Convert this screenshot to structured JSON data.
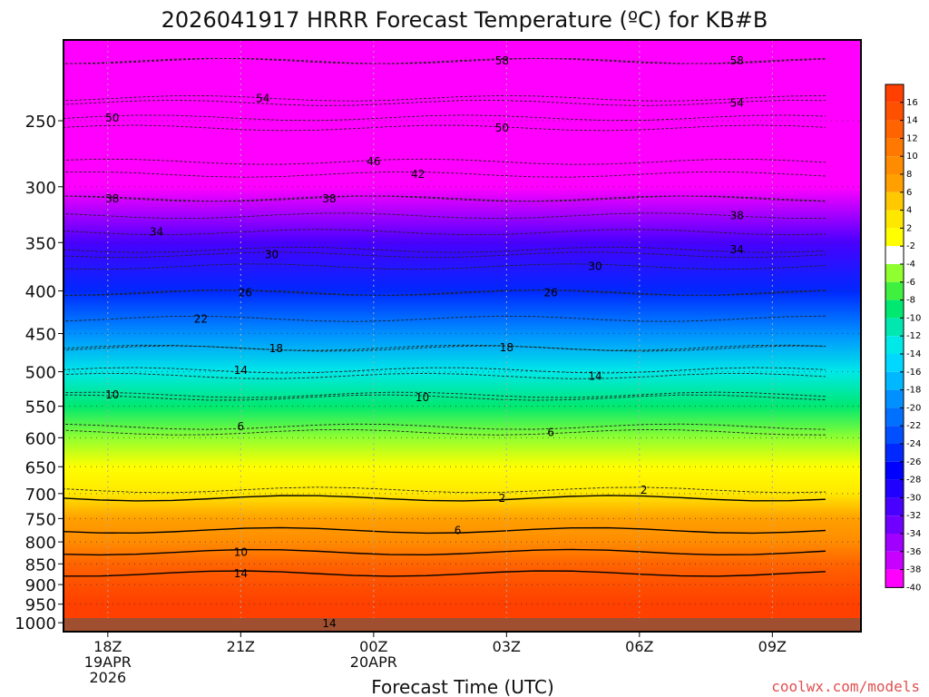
{
  "chart_data": {
    "type": "heatmap",
    "title": "2026041917 HRRR Forecast Temperature (ºC) for KB#B",
    "xlabel": "Forecast Time (UTC)",
    "ylabel": "",
    "watermark": "coolwx.com/models",
    "x_ticks": [
      {
        "hour": 0,
        "lines": [
          "18Z",
          "19APR",
          "2026"
        ]
      },
      {
        "hour": 3,
        "lines": [
          "21Z"
        ]
      },
      {
        "hour": 6,
        "lines": [
          "00Z",
          "20APR"
        ]
      },
      {
        "hour": 9,
        "lines": [
          "03Z"
        ]
      },
      {
        "hour": 12,
        "lines": [
          "06Z"
        ]
      },
      {
        "hour": 15,
        "lines": [
          "09Z"
        ]
      }
    ],
    "xlim": [
      -1,
      17
    ],
    "y_ticks": [
      250,
      300,
      350,
      400,
      450,
      500,
      550,
      600,
      650,
      700,
      750,
      800,
      850,
      900,
      950,
      1000
    ],
    "ylim_hPa": [
      200,
      1025
    ],
    "colorbar": {
      "labels": [
        16,
        14,
        12,
        10,
        8,
        6,
        4,
        2,
        -2,
        -4,
        -6,
        -8,
        -10,
        -12,
        -14,
        -16,
        -18,
        -20,
        -22,
        -24,
        -26,
        -28,
        -30,
        -32,
        -34,
        -36,
        -38,
        -40
      ],
      "colors": [
        "#ff4000",
        "#ff5000",
        "#ff6400",
        "#ff7800",
        "#ff8c00",
        "#ffa000",
        "#ffc800",
        "#ffe800",
        "#ffff00",
        "#ffffff",
        "#90ff30",
        "#40f040",
        "#00e870",
        "#00e8b0",
        "#00e8e8",
        "#00d8ff",
        "#00b8ff",
        "#0090ff",
        "#0070ff",
        "#0050ff",
        "#0028ff",
        "#0000ff",
        "#2000ff",
        "#4800ff",
        "#7000ff",
        "#a000ff",
        "#c800ff",
        "#ff00ff"
      ]
    },
    "temperature_levels": [
      {
        "p": 200,
        "t": -62
      },
      {
        "p": 250,
        "t": -51
      },
      {
        "p": 300,
        "t": -40
      },
      {
        "p": 350,
        "t": -32
      },
      {
        "p": 400,
        "t": -26
      },
      {
        "p": 450,
        "t": -20
      },
      {
        "p": 500,
        "t": -14
      },
      {
        "p": 550,
        "t": -9
      },
      {
        "p": 600,
        "t": -5
      },
      {
        "p": 650,
        "t": -1
      },
      {
        "p": 700,
        "t": 2
      },
      {
        "p": 750,
        "t": 5
      },
      {
        "p": 800,
        "t": 8
      },
      {
        "p": 850,
        "t": 11
      },
      {
        "p": 900,
        "t": 14
      },
      {
        "p": 950,
        "t": 16
      },
      {
        "p": 1000,
        "t": 16
      }
    ],
    "contour_labels": [
      {
        "text": "58",
        "hour": 8.9,
        "p": 212
      },
      {
        "text": "58",
        "hour": 14.2,
        "p": 212
      },
      {
        "text": "54",
        "hour": 3.5,
        "p": 235
      },
      {
        "text": "54",
        "hour": 14.2,
        "p": 238
      },
      {
        "text": "50",
        "hour": 0.1,
        "p": 248
      },
      {
        "text": "50",
        "hour": 8.9,
        "p": 255
      },
      {
        "text": "46",
        "hour": 6.0,
        "p": 280
      },
      {
        "text": "42",
        "hour": 7.0,
        "p": 290
      },
      {
        "text": "38",
        "hour": 0.1,
        "p": 310
      },
      {
        "text": "38",
        "hour": 5.0,
        "p": 310
      },
      {
        "text": "38",
        "hour": 14.2,
        "p": 325
      },
      {
        "text": "34",
        "hour": 1.1,
        "p": 340
      },
      {
        "text": "34",
        "hour": 14.2,
        "p": 357
      },
      {
        "text": "30",
        "hour": 3.7,
        "p": 362
      },
      {
        "text": "30",
        "hour": 11.0,
        "p": 374
      },
      {
        "text": "26",
        "hour": 3.1,
        "p": 402
      },
      {
        "text": "26",
        "hour": 10.0,
        "p": 402
      },
      {
        "text": "22",
        "hour": 2.1,
        "p": 432
      },
      {
        "text": "18",
        "hour": 3.8,
        "p": 469
      },
      {
        "text": "18",
        "hour": 9.0,
        "p": 468
      },
      {
        "text": "14",
        "hour": 3.0,
        "p": 498
      },
      {
        "text": "14",
        "hour": 11.0,
        "p": 506
      },
      {
        "text": "10",
        "hour": 0.1,
        "p": 533
      },
      {
        "text": "10",
        "hour": 7.1,
        "p": 537
      },
      {
        "text": "6",
        "hour": 3.0,
        "p": 582
      },
      {
        "text": "6",
        "hour": 10.0,
        "p": 591
      },
      {
        "text": "2",
        "hour": 12.1,
        "p": 693
      },
      {
        "text": "2",
        "hour": 8.9,
        "p": 709
      },
      {
        "text": "6",
        "hour": 7.9,
        "p": 775
      },
      {
        "text": "10",
        "hour": 3.0,
        "p": 823
      },
      {
        "text": "14",
        "hour": 3.0,
        "p": 873
      },
      {
        "text": "14",
        "hour": 5.0,
        "p": 1002
      }
    ]
  }
}
